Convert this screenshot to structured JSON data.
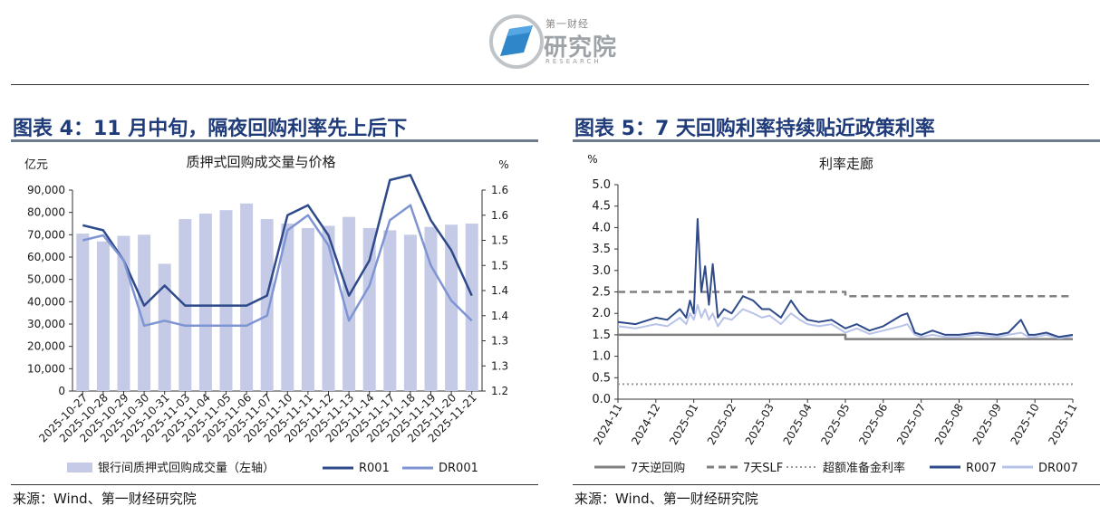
{
  "header": {
    "logo_small": "第一财经",
    "logo_big": "研究院",
    "logo_en": "RESEARCH"
  },
  "colors": {
    "bar": "#c5cbe6",
    "r001": "#2e4a8a",
    "dr001": "#7f95d3",
    "title": "#1f3b7a",
    "reverse_repo": "#808080",
    "slf": "#808080",
    "excess_reserve": "#999999",
    "r007": "#2e4a8a",
    "dr007": "#b8c3e8"
  },
  "left": {
    "title": "图表 4：11 月中旬，隔夜回购利率先上后下",
    "source": "来源：Wind、第一财经研究院"
  },
  "right": {
    "title": "图表 5：7 天回购利率持续贴近政策利率",
    "source": "来源：Wind、第一财经研究院"
  },
  "chart_data": [
    {
      "type": "bar",
      "title": "质押式回购成交量与价格",
      "y_left_unit": "亿元",
      "y_right_unit": "%",
      "categories": [
        "2025-10-27",
        "2025-10-28",
        "2025-10-29",
        "2025-10-30",
        "2025-10-31",
        "2025-11-03",
        "2025-11-04",
        "2025-11-05",
        "2025-11-06",
        "2025-11-07",
        "2025-11-10",
        "2025-11-11",
        "2025-11-12",
        "2025-11-13",
        "2025-11-14",
        "2025-11-17",
        "2025-11-18",
        "2025-11-19",
        "2025-11-20",
        "2025-11-21"
      ],
      "y_left_ticks": [
        "0",
        "10,000",
        "20,000",
        "30,000",
        "40,000",
        "50,000",
        "60,000",
        "70,000",
        "80,000",
        "90,000"
      ],
      "y_right_ticks": [
        "1.2",
        "1.3",
        "1.3",
        "1.4",
        "1.4",
        "1.5",
        "1.5",
        "1.6",
        "1.6"
      ],
      "ylim_left": [
        0,
        90000
      ],
      "ylim_right": [
        1.2,
        1.6
      ],
      "series": [
        {
          "name": "银行间质押式回购成交量（左轴）",
          "axis": "left",
          "kind": "bar",
          "values": [
            70500,
            67000,
            69500,
            70000,
            57000,
            77000,
            79500,
            81000,
            84000,
            77000,
            75000,
            73000,
            74000,
            78000,
            73000,
            72000,
            70000,
            73500,
            74500,
            75000
          ]
        },
        {
          "name": "R001",
          "axis": "right",
          "kind": "line",
          "values": [
            1.53,
            1.52,
            1.46,
            1.37,
            1.41,
            1.37,
            1.37,
            1.37,
            1.37,
            1.39,
            1.55,
            1.57,
            1.51,
            1.39,
            1.46,
            1.62,
            1.63,
            1.54,
            1.48,
            1.39
          ]
        },
        {
          "name": "DR001",
          "axis": "right",
          "kind": "line",
          "values": [
            1.5,
            1.51,
            1.46,
            1.33,
            1.34,
            1.33,
            1.33,
            1.33,
            1.33,
            1.35,
            1.52,
            1.55,
            1.49,
            1.34,
            1.41,
            1.54,
            1.57,
            1.45,
            1.38,
            1.34
          ]
        }
      ]
    },
    {
      "type": "line",
      "title": "利率走廊",
      "y_unit": "%",
      "x_ticks": [
        "2024-11",
        "2024-12",
        "2025-01",
        "2025-02",
        "2025-03",
        "2025-04",
        "2025-05",
        "2025-06",
        "2025-07",
        "2025-08",
        "2025-09",
        "2025-10",
        "2025-11"
      ],
      "y_ticks": [
        "0.0",
        "0.5",
        "1.0",
        "1.5",
        "2.0",
        "2.5",
        "3.0",
        "3.5",
        "4.0",
        "4.5",
        "5.0"
      ],
      "ylim": [
        0,
        5
      ],
      "series": [
        {
          "name": "7天逆回购",
          "style": "solid",
          "x": [
            "2024-11",
            "2025-05",
            "2025-05",
            "2025-11"
          ],
          "y": [
            1.5,
            1.5,
            1.4,
            1.4
          ]
        },
        {
          "name": "7天SLF",
          "style": "dashed",
          "x": [
            "2024-11",
            "2025-05",
            "2025-05",
            "2025-11"
          ],
          "y": [
            2.5,
            2.5,
            2.4,
            2.4
          ]
        },
        {
          "name": "超额准备金利率",
          "style": "dotted",
          "x": [
            "2024-11",
            "2025-11"
          ],
          "y": [
            0.35,
            0.35
          ]
        },
        {
          "name": "R007",
          "style": "solid",
          "x": [
            "2024-11",
            "2024-11-15",
            "2024-12",
            "2024-12-10",
            "2024-12-20",
            "2024-12-25",
            "2024-12-28",
            "2025-01",
            "2025-01-04",
            "2025-01-07",
            "2025-01-10",
            "2025-01-13",
            "2025-01-16",
            "2025-01-20",
            "2025-01-25",
            "2025-02",
            "2025-02-10",
            "2025-02-18",
            "2025-02-25",
            "2025-03",
            "2025-03-10",
            "2025-03-18",
            "2025-03-25",
            "2025-04",
            "2025-04-10",
            "2025-04-20",
            "2025-05",
            "2025-05-10",
            "2025-05-20",
            "2025-06",
            "2025-06-15",
            "2025-06-20",
            "2025-06-26",
            "2025-07",
            "2025-07-10",
            "2025-07-20",
            "2025-08",
            "2025-08-15",
            "2025-09",
            "2025-09-10",
            "2025-09-20",
            "2025-09-26",
            "2025-10",
            "2025-10-10",
            "2025-10-20",
            "2025-11"
          ],
          "y": [
            1.8,
            1.75,
            1.9,
            1.85,
            2.1,
            1.9,
            2.3,
            2.0,
            4.2,
            2.5,
            3.1,
            2.2,
            3.15,
            1.9,
            2.1,
            2.0,
            2.4,
            2.3,
            2.1,
            2.1,
            1.9,
            2.3,
            2.0,
            1.85,
            1.8,
            1.85,
            1.65,
            1.75,
            1.6,
            1.7,
            1.95,
            2.0,
            1.55,
            1.5,
            1.6,
            1.5,
            1.5,
            1.55,
            1.5,
            1.55,
            1.85,
            1.5,
            1.5,
            1.55,
            1.45,
            1.5
          ]
        },
        {
          "name": "DR007",
          "style": "solid",
          "x": [
            "2024-11",
            "2024-11-15",
            "2024-12",
            "2024-12-10",
            "2024-12-20",
            "2024-12-25",
            "2024-12-28",
            "2025-01",
            "2025-01-04",
            "2025-01-07",
            "2025-01-10",
            "2025-01-13",
            "2025-01-16",
            "2025-01-20",
            "2025-01-25",
            "2025-02",
            "2025-02-10",
            "2025-02-18",
            "2025-02-25",
            "2025-03",
            "2025-03-10",
            "2025-03-18",
            "2025-03-25",
            "2025-04",
            "2025-04-10",
            "2025-04-20",
            "2025-05",
            "2025-05-10",
            "2025-05-20",
            "2025-06",
            "2025-06-15",
            "2025-06-20",
            "2025-06-26",
            "2025-07",
            "2025-07-10",
            "2025-07-20",
            "2025-08",
            "2025-08-15",
            "2025-09",
            "2025-09-10",
            "2025-09-20",
            "2025-09-26",
            "2025-10",
            "2025-10-10",
            "2025-10-20",
            "2025-11"
          ],
          "y": [
            1.7,
            1.65,
            1.75,
            1.7,
            1.9,
            1.75,
            2.0,
            1.85,
            2.2,
            1.9,
            2.1,
            1.85,
            2.0,
            1.7,
            1.9,
            1.85,
            2.1,
            2.0,
            1.9,
            1.95,
            1.75,
            2.0,
            1.85,
            1.75,
            1.7,
            1.75,
            1.55,
            1.65,
            1.52,
            1.6,
            1.7,
            1.75,
            1.5,
            1.45,
            1.5,
            1.45,
            1.45,
            1.5,
            1.45,
            1.5,
            1.55,
            1.45,
            1.45,
            1.5,
            1.42,
            1.47
          ]
        }
      ]
    }
  ]
}
